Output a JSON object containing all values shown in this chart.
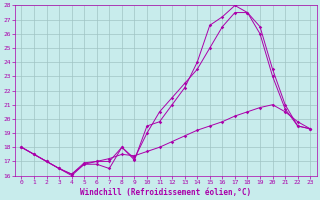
{
  "xlabel": "Windchill (Refroidissement éolien,°C)",
  "bg_color": "#c8ecec",
  "grid_color": "#a0c4c4",
  "line_color": "#aa00aa",
  "ylim": [
    16,
    28
  ],
  "xlim": [
    -0.5,
    23.5
  ],
  "yticks": [
    16,
    17,
    18,
    19,
    20,
    21,
    22,
    23,
    24,
    25,
    26,
    27,
    28
  ],
  "xticks": [
    0,
    1,
    2,
    3,
    4,
    5,
    6,
    7,
    8,
    9,
    10,
    11,
    12,
    13,
    14,
    15,
    16,
    17,
    18,
    19,
    20,
    21,
    22,
    23
  ],
  "s1_x": [
    0,
    1,
    2,
    3,
    4,
    5,
    6,
    7,
    8,
    9,
    10,
    11,
    12,
    13,
    14,
    15,
    16,
    17,
    18,
    19,
    20,
    21,
    22,
    23
  ],
  "s1_y": [
    18.0,
    17.5,
    17.0,
    16.5,
    16.0,
    16.8,
    16.8,
    16.5,
    18.0,
    17.1,
    19.5,
    19.8,
    21.0,
    22.2,
    24.0,
    26.6,
    27.2,
    28.0,
    27.5,
    26.0,
    23.0,
    20.7,
    19.5,
    19.3
  ],
  "s2_x": [
    0,
    1,
    2,
    3,
    4,
    5,
    6,
    7,
    8,
    9,
    10,
    11,
    12,
    13,
    14,
    15,
    16,
    17,
    18,
    19,
    20,
    21,
    22,
    23
  ],
  "s2_y": [
    18.0,
    17.5,
    17.0,
    16.5,
    16.1,
    16.8,
    17.0,
    17.0,
    18.0,
    17.2,
    19.0,
    20.5,
    21.5,
    22.5,
    23.5,
    25.0,
    26.5,
    27.5,
    27.5,
    26.5,
    23.5,
    21.0,
    19.5,
    19.3
  ],
  "s3_x": [
    0,
    1,
    2,
    3,
    4,
    5,
    6,
    7,
    8,
    9,
    10,
    11,
    12,
    13,
    14,
    15,
    16,
    17,
    18,
    19,
    20,
    21,
    22,
    23
  ],
  "s3_y": [
    18.0,
    17.5,
    17.0,
    16.5,
    16.1,
    16.9,
    17.0,
    17.2,
    17.5,
    17.4,
    17.7,
    18.0,
    18.4,
    18.8,
    19.2,
    19.5,
    19.8,
    20.2,
    20.5,
    20.8,
    21.0,
    20.5,
    19.8,
    19.3
  ]
}
